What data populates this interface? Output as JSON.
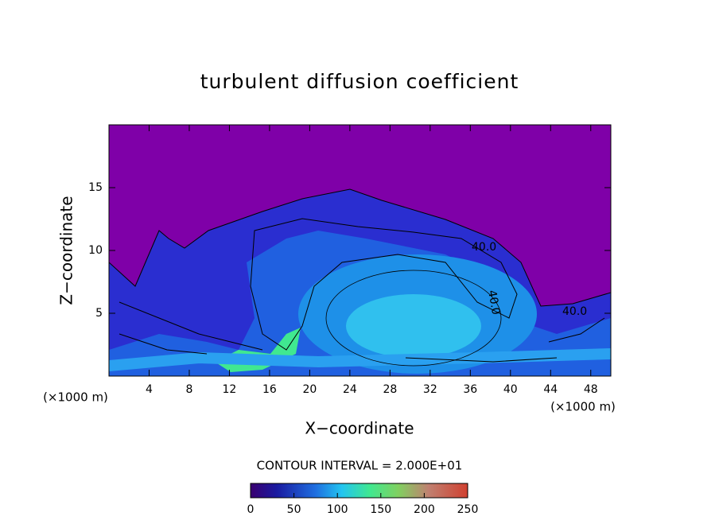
{
  "chart_data": {
    "type": "contour",
    "title": "turbulent diffusion coefficient",
    "x_label": "X−coordinate",
    "y_label": "Z−coordinate",
    "x_unit_left": "(×1000 m)",
    "x_unit_right": "(×1000 m)",
    "xlim": [
      0,
      50
    ],
    "xticks": [
      4,
      8,
      12,
      16,
      20,
      24,
      28,
      32,
      36,
      40,
      44,
      48
    ],
    "ylim": [
      0,
      20
    ],
    "yticks": [
      5,
      10,
      15
    ],
    "contour_interval": "CONTOUR INTERVAL = 2.000E+01",
    "contour_labels": [
      "40.0",
      "40.0",
      "40.0"
    ],
    "colorbar": {
      "lim": [
        0,
        250
      ],
      "ticks": [
        0,
        50,
        100,
        150,
        200,
        250
      ]
    }
  }
}
